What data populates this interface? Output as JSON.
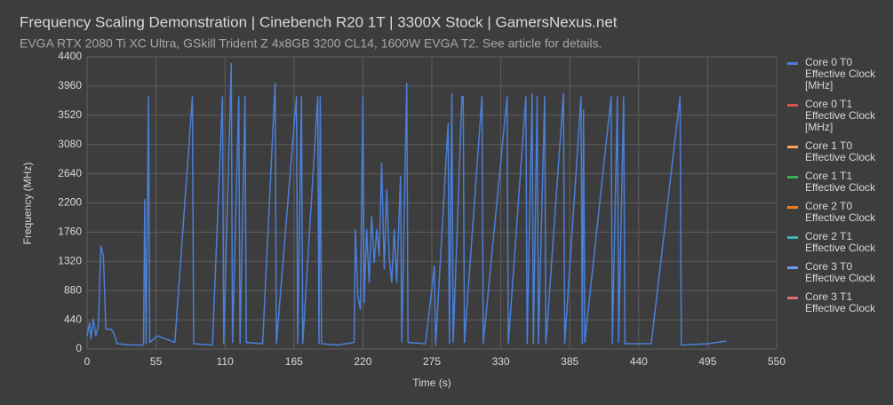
{
  "chart_data": {
    "type": "line",
    "title": "Frequency Scaling Demonstration | Cinebench R20 1T | 3300X Stock | GamersNexus.net",
    "subtitle": "EVGA RTX 2080 Ti XC Ultra, GSkill Trident Z 4x8GB 3200 CL14, 1600W EVGA T2. See article for details.",
    "x_label": "Time (s)",
    "y_label": "Frequency (MHz)",
    "xlim": [
      0,
      550
    ],
    "xticks": [
      0,
      55,
      110,
      165,
      220,
      275,
      330,
      385,
      440,
      495,
      550
    ],
    "ylim": [
      0,
      4400
    ],
    "yticks": [
      0,
      440,
      880,
      1320,
      1760,
      2200,
      2640,
      3080,
      3520,
      3960,
      4400
    ],
    "grid": true,
    "legend": "right",
    "x": [
      0,
      2,
      3,
      5,
      7,
      9,
      11,
      13,
      15,
      19,
      21,
      24,
      36,
      45,
      46,
      47,
      48,
      49,
      50,
      56,
      70,
      84,
      85,
      100,
      108,
      109,
      115,
      116,
      121,
      122,
      126,
      127,
      140,
      150,
      151,
      167,
      168,
      171,
      172,
      184,
      185,
      186,
      187,
      200,
      213,
      214,
      216,
      218,
      220,
      221,
      223,
      225,
      227,
      229,
      231,
      233,
      235,
      237,
      239,
      241,
      243,
      245,
      247,
      250,
      251,
      255,
      256,
      270,
      277,
      278,
      288,
      289,
      291,
      292,
      299,
      300,
      301,
      315,
      316,
      335,
      336,
      350,
      351,
      355,
      356,
      359,
      360,
      365,
      366,
      380,
      381,
      394,
      395,
      396,
      397,
      418,
      419,
      423,
      424,
      428,
      429,
      450,
      473,
      474,
      495,
      510
    ],
    "series": [
      {
        "name": "Core 0 T0 Effective Clock [MHz]",
        "color": "#4a7fd8",
        "values": [
          200,
          400,
          150,
          450,
          200,
          350,
          1550,
          1400,
          300,
          300,
          250,
          80,
          60,
          60,
          2250,
          80,
          1800,
          3800,
          100,
          200,
          100,
          3800,
          80,
          60,
          3800,
          80,
          4300,
          100,
          3800,
          80,
          3800,
          100,
          80,
          4000,
          80,
          3800,
          80,
          3800,
          80,
          3800,
          80,
          3800,
          80,
          60,
          100,
          1800,
          800,
          600,
          3800,
          700,
          1800,
          1000,
          2000,
          1300,
          1800,
          1400,
          2800,
          1200,
          2400,
          1400,
          1000,
          1800,
          1000,
          2600,
          100,
          4000,
          100,
          80,
          1250,
          60,
          3400,
          80,
          3850,
          100,
          3800,
          3800,
          100,
          3800,
          80,
          3800,
          80,
          3800,
          80,
          3850,
          80,
          3800,
          80,
          3800,
          80,
          3850,
          80,
          3800,
          80,
          3600,
          100,
          3800,
          80,
          3800,
          100,
          3800,
          80,
          80,
          3800,
          60,
          80,
          120
        ]
      },
      {
        "name": "Core 0 T1 Effective Clock [MHz]",
        "color": "#d9534f",
        "values": [
          null,
          null,
          null,
          null,
          null,
          null,
          null,
          null,
          null,
          null,
          null,
          null,
          null,
          null,
          null,
          null,
          null,
          null,
          null,
          null,
          null,
          null,
          null,
          null,
          null,
          null,
          null,
          null,
          null,
          null,
          null,
          null,
          null,
          null,
          null,
          null,
          null,
          null,
          null,
          null,
          null,
          null,
          null,
          null,
          null,
          null,
          null,
          null,
          null,
          null,
          null,
          null,
          null,
          null,
          null,
          null,
          null,
          null,
          null,
          null,
          null,
          null,
          null,
          null,
          null,
          null,
          null,
          null,
          null,
          null,
          null,
          null,
          null,
          null,
          null,
          null,
          null,
          null,
          null,
          null,
          null,
          null,
          null,
          null,
          null,
          null,
          null,
          null,
          null,
          null,
          null,
          null,
          null,
          null,
          null,
          null,
          null,
          null,
          null,
          null,
          null,
          null,
          null,
          null,
          null,
          null
        ]
      },
      {
        "name": "Core 1 T0 Effective Clock",
        "color": "#f4a460",
        "values": [
          null,
          null,
          null,
          null,
          null,
          null,
          null,
          null,
          null,
          null,
          null,
          null,
          null,
          null,
          null,
          null,
          null,
          null,
          null,
          null,
          null,
          null,
          null,
          null,
          null,
          null,
          null,
          null,
          null,
          null,
          null,
          null,
          null,
          null,
          null,
          null,
          null,
          null,
          null,
          null,
          null,
          null,
          null,
          null,
          null,
          null,
          null,
          null,
          null,
          null,
          null,
          null,
          null,
          null,
          null,
          null,
          null,
          null,
          null,
          null,
          null,
          null,
          null,
          null,
          null,
          null,
          null,
          null,
          null,
          null,
          null,
          null,
          null,
          null,
          null,
          null,
          null,
          null,
          null,
          null,
          null,
          null,
          null,
          null,
          null,
          null,
          null,
          null,
          null,
          null,
          null,
          null,
          null,
          null,
          null,
          null,
          null,
          null,
          null,
          null,
          null,
          null,
          null,
          null,
          null,
          null
        ]
      },
      {
        "name": "Core 1 T1 Effective Clock",
        "color": "#3cb054",
        "values": [
          null,
          null,
          null,
          null,
          null,
          null,
          null,
          null,
          null,
          null,
          null,
          null,
          null,
          null,
          null,
          null,
          null,
          null,
          null,
          null,
          null,
          null,
          null,
          null,
          null,
          null,
          null,
          null,
          null,
          null,
          null,
          null,
          null,
          null,
          null,
          null,
          null,
          null,
          null,
          null,
          null,
          null,
          null,
          null,
          null,
          null,
          null,
          null,
          null,
          null,
          null,
          null,
          null,
          null,
          null,
          null,
          null,
          null,
          null,
          null,
          null,
          null,
          null,
          null,
          null,
          null,
          null,
          null,
          null,
          null,
          null,
          null,
          null,
          null,
          null,
          null,
          null,
          null,
          null,
          null,
          null,
          null,
          null,
          null,
          null,
          null,
          null,
          null,
          null,
          null,
          null,
          null,
          null,
          null,
          null,
          null,
          null,
          null,
          null,
          null,
          null,
          null,
          null,
          null,
          null,
          null
        ]
      },
      {
        "name": "Core 2 T0 Effective Clock",
        "color": "#f07f18",
        "values": [
          null,
          null,
          null,
          null,
          null,
          null,
          null,
          null,
          null,
          null,
          null,
          null,
          null,
          null,
          null,
          null,
          null,
          null,
          null,
          null,
          null,
          null,
          null,
          null,
          null,
          null,
          null,
          null,
          null,
          null,
          null,
          null,
          null,
          null,
          null,
          null,
          null,
          null,
          null,
          null,
          null,
          null,
          null,
          null,
          null,
          null,
          null,
          null,
          null,
          null,
          null,
          null,
          null,
          null,
          null,
          null,
          null,
          null,
          null,
          null,
          null,
          null,
          null,
          null,
          null,
          null,
          null,
          null,
          null,
          null,
          null,
          null,
          null,
          null,
          null,
          null,
          null,
          null,
          null,
          null,
          null,
          null,
          null,
          null,
          null,
          null,
          null,
          null,
          null,
          null,
          null,
          null,
          null,
          null,
          null,
          null,
          null,
          null,
          null,
          null,
          null,
          null,
          null,
          null,
          null,
          null
        ]
      },
      {
        "name": "Core 2 T1 Effective Clock",
        "color": "#3cb8b8",
        "values": [
          null,
          null,
          null,
          null,
          null,
          null,
          null,
          null,
          null,
          null,
          null,
          null,
          null,
          null,
          null,
          null,
          null,
          null,
          null,
          null,
          null,
          null,
          null,
          null,
          null,
          null,
          null,
          null,
          null,
          null,
          null,
          null,
          null,
          null,
          null,
          null,
          null,
          null,
          null,
          null,
          null,
          null,
          null,
          null,
          null,
          null,
          null,
          null,
          null,
          null,
          null,
          null,
          null,
          null,
          null,
          null,
          null,
          null,
          null,
          null,
          null,
          null,
          null,
          null,
          null,
          null,
          null,
          null,
          null,
          null,
          null,
          null,
          null,
          null,
          null,
          null,
          null,
          null,
          null,
          null,
          null,
          null,
          null,
          null,
          null,
          null,
          null,
          null,
          null,
          null,
          null,
          null,
          null,
          null,
          null,
          null,
          null,
          null,
          null,
          null,
          null,
          null,
          null,
          null,
          null,
          null
        ]
      },
      {
        "name": "Core 3 T0 Effective Clock",
        "color": "#6fa0f0",
        "values": [
          null,
          null,
          null,
          null,
          null,
          null,
          null,
          null,
          null,
          null,
          null,
          null,
          null,
          null,
          null,
          null,
          null,
          null,
          null,
          null,
          null,
          null,
          null,
          null,
          null,
          null,
          null,
          null,
          null,
          null,
          null,
          null,
          null,
          null,
          null,
          null,
          null,
          null,
          null,
          null,
          null,
          null,
          null,
          null,
          null,
          null,
          null,
          null,
          null,
          null,
          null,
          null,
          null,
          null,
          null,
          null,
          null,
          null,
          null,
          null,
          null,
          null,
          null,
          null,
          null,
          null,
          null,
          null,
          null,
          null,
          null,
          null,
          null,
          null,
          null,
          null,
          null,
          null,
          null,
          null,
          null,
          null,
          null,
          null,
          null,
          null,
          null,
          null,
          null,
          null,
          null,
          null,
          null,
          null,
          null,
          null,
          null,
          null,
          null,
          null,
          null,
          null,
          null,
          null,
          null,
          null
        ]
      },
      {
        "name": "Core 3 T1 Effective Clock",
        "color": "#e07070",
        "values": [
          null,
          null,
          null,
          null,
          null,
          null,
          null,
          null,
          null,
          null,
          null,
          null,
          null,
          null,
          null,
          null,
          null,
          null,
          null,
          null,
          null,
          null,
          null,
          null,
          null,
          null,
          null,
          null,
          null,
          null,
          null,
          null,
          null,
          null,
          null,
          null,
          null,
          null,
          null,
          null,
          null,
          null,
          null,
          null,
          null,
          null,
          null,
          null,
          null,
          null,
          null,
          null,
          null,
          null,
          null,
          null,
          null,
          null,
          null,
          null,
          null,
          null,
          null,
          null,
          null,
          null,
          null,
          null,
          null,
          null,
          null,
          null,
          null,
          null,
          null,
          null,
          null,
          null,
          null,
          null,
          null,
          null,
          null,
          null,
          null,
          null,
          null,
          null,
          null,
          null,
          null,
          null,
          null,
          null,
          null,
          null,
          null,
          null,
          null,
          null,
          null,
          null,
          null,
          null,
          null,
          null
        ]
      }
    ]
  }
}
